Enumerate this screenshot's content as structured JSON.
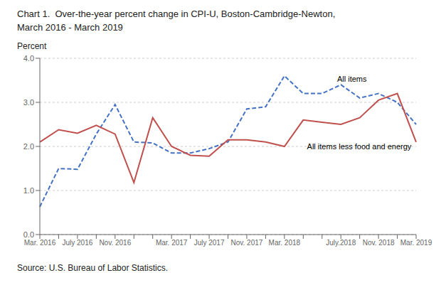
{
  "chart_data": {
    "type": "line",
    "title": "Chart 1.  Over-the-year percent change in CPI-U, Boston-Cambridge-Newton,",
    "subtitle": "March 2016 - March 2019",
    "y_label": "Percent",
    "source": "Source: U.S. Bureau of Labor Statistics.",
    "categories": [
      "Mar. 2016",
      null,
      "July 2016",
      null,
      "Nov. 2016",
      null,
      null,
      "Mar. 2017",
      null,
      "July 2017",
      null,
      "Nov. 2017",
      null,
      "Mar. 2018",
      null,
      null,
      "July.2018",
      null,
      "Nov. 2018",
      null,
      "Mar. 2019"
    ],
    "series": [
      {
        "name": "All items",
        "color": "#4472C4",
        "line_style": "dashed",
        "values": [
          0.63,
          1.5,
          1.48,
          2.28,
          2.95,
          2.1,
          2.08,
          1.85,
          1.85,
          1.95,
          2.1,
          2.85,
          2.9,
          3.6,
          3.2,
          3.2,
          3.4,
          3.1,
          3.2,
          3.0,
          2.5
        ]
      },
      {
        "name": "All items less food and energy",
        "color": "#C0504D",
        "line_style": "solid",
        "values": [
          2.1,
          2.38,
          2.3,
          2.48,
          2.28,
          1.18,
          2.65,
          2.0,
          1.8,
          1.78,
          2.15,
          2.15,
          2.1,
          2.0,
          2.6,
          2.55,
          2.5,
          2.65,
          3.05,
          3.2,
          2.1
        ]
      }
    ],
    "annotations": [
      {
        "text": "All items",
        "x": 15.8,
        "y": 3.42
      },
      {
        "text": "All items less food and energy",
        "x": 14.2,
        "y": 2.12
      }
    ],
    "ylim": [
      0,
      4
    ],
    "yticks": [
      {
        "value": 0,
        "label": "0.0"
      },
      {
        "value": 1,
        "label": "1.0"
      },
      {
        "value": 2,
        "label": "2.0"
      },
      {
        "value": 3,
        "label": "3.0"
      },
      {
        "value": 4,
        "label": "4.0"
      }
    ],
    "grid": true
  }
}
